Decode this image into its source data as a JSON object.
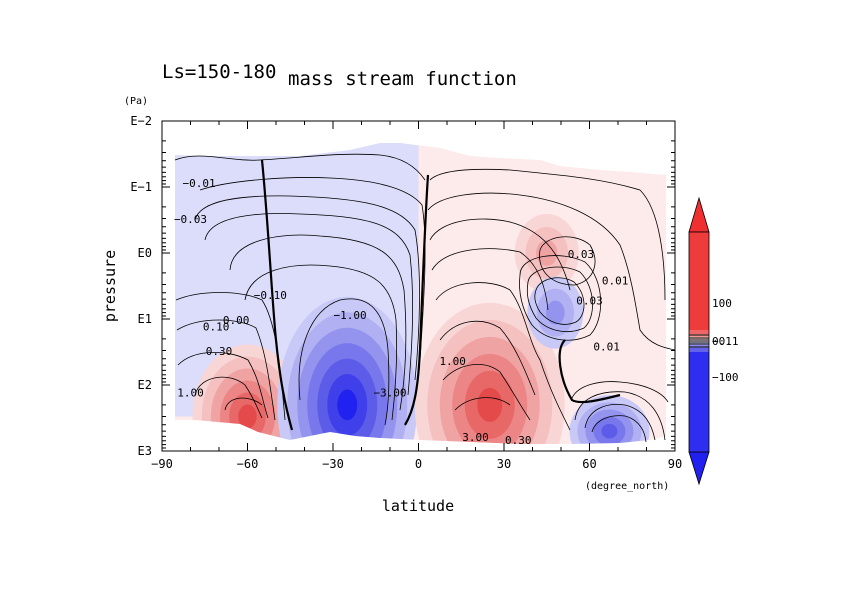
{
  "chart_data": {
    "type": "heatmap",
    "subtitle": "Ls=150-180",
    "title": "mass stream function",
    "xlabel": "latitude",
    "xunit": "(degree_north)",
    "ylabel": "pressure",
    "yunit": "(Pa)",
    "xlim": [
      -90,
      90
    ],
    "ylim": [
      1000,
      0.01
    ],
    "yscale": "log",
    "x_ticks": [
      -90,
      -60,
      -30,
      0,
      30,
      60,
      90
    ],
    "x_tick_labels": [
      "−90",
      "−60",
      "−30",
      "0",
      "30",
      "60",
      "90"
    ],
    "y_ticks": [
      0.01,
      0.1,
      1,
      10,
      100,
      1000
    ],
    "y_tick_labels": [
      "E−2",
      "E−1",
      "E0",
      "E1",
      "E2",
      "E3"
    ],
    "colorbar": {
      "labels": [
        {
          "text": "100",
          "value": 100
        },
        {
          "text": "0.1",
          "value": 0.1
        },
        {
          "text": "−0.1",
          "value": -0.1
        },
        {
          "text": "−100",
          "value": -100
        }
      ],
      "extend": "both"
    },
    "cells": [
      {
        "name": "south-polar-hadley-cell",
        "sign": 1,
        "lat": -60,
        "p": 300,
        "peak": 3.0
      },
      {
        "name": "southern-winter-cell",
        "sign": -1,
        "lat": -25,
        "p": 200,
        "peak": -10.0
      },
      {
        "name": "northern-main-cell",
        "sign": 1,
        "lat": 25,
        "p": 200,
        "peak": 5.0
      },
      {
        "name": "upper-midlat-positive",
        "sign": 1,
        "lat": 45,
        "p": 1,
        "peak": 0.05
      },
      {
        "name": "upper-midlat-negative",
        "sign": -1,
        "lat": 48,
        "p": 8,
        "peak": -0.05
      },
      {
        "name": "north-polar-negative-cell",
        "sign": -1,
        "lat": 67,
        "p": 500,
        "peak": -1.0
      }
    ],
    "contour_labels": [
      {
        "text": "−0.01",
        "lat": -77,
        "p": 0.1
      },
      {
        "text": "−0.03",
        "lat": -80,
        "p": 0.35
      },
      {
        "text": "−0.10",
        "lat": -52,
        "p": 5
      },
      {
        "text": "0.10",
        "lat": -71,
        "p": 15
      },
      {
        "text": "0.00",
        "lat": -64,
        "p": 12
      },
      {
        "text": "0.30",
        "lat": -70,
        "p": 35
      },
      {
        "text": "1.00",
        "lat": -80,
        "p": 150
      },
      {
        "text": "−1.00",
        "lat": -24,
        "p": 10
      },
      {
        "text": "−3.00",
        "lat": -10,
        "p": 150
      },
      {
        "text": "1.00",
        "lat": 12,
        "p": 50
      },
      {
        "text": "3.00",
        "lat": 20,
        "p": 700
      },
      {
        "text": "0.30",
        "lat": 35,
        "p": 780
      },
      {
        "text": "0.03",
        "lat": 57,
        "p": 1.2
      },
      {
        "text": "0.01",
        "lat": 69,
        "p": 3
      },
      {
        "text": "0.01",
        "lat": 66,
        "p": 30
      },
      {
        "text": "0.03",
        "lat": 60,
        "p": 6
      }
    ]
  }
}
